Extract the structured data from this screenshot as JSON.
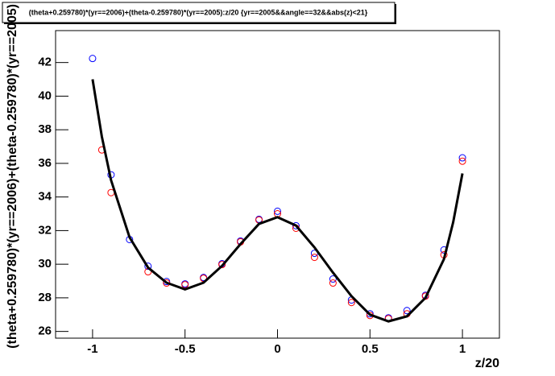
{
  "chart_data": {
    "type": "scatter",
    "title": "(theta+0.259780)*(yr==2006)+(theta-0.259780)*(yr==2005):z/20 {yr==2005&&angle==32&&abs(z)<21}",
    "x_label": "z/20",
    "y_label": "(theta+0.259780)*(yr==2006)+(theta-0.259780)*(yr==2005)",
    "xlim": [
      -1.2,
      1.2
    ],
    "ylim": [
      25.6,
      43.9
    ],
    "xticks": [
      -1,
      -0.5,
      0,
      0.5,
      1
    ],
    "yticks": [
      26,
      28,
      30,
      32,
      34,
      36,
      38,
      40,
      42
    ],
    "series": [
      {
        "color": "#0000ff",
        "x": [
          -1,
          -0.9,
          -0.8,
          -0.7,
          -0.6,
          -0.5,
          -0.4,
          -0.3,
          -0.2,
          -0.1,
          0,
          0.1,
          0.2,
          0.3,
          0.4,
          0.5,
          0.6,
          0.7,
          0.8,
          0.9,
          1
        ],
        "values": [
          42.24,
          35.32,
          31.47,
          29.88,
          28.97,
          28.83,
          29.21,
          30.03,
          31.38,
          32.67,
          33.15,
          32.29,
          30.65,
          29.12,
          27.87,
          27.05,
          26.81,
          27.24,
          28.15,
          30.85,
          36.33
        ]
      },
      {
        "color": "#ff0000",
        "x": [
          -0.95,
          -0.9,
          -0.7,
          -0.6,
          -0.5,
          -0.4,
          -0.3,
          -0.2,
          -0.1,
          0,
          0.1,
          0.2,
          0.3,
          0.4,
          0.5,
          0.6,
          0.7,
          0.8,
          0.9,
          1
        ],
        "values": [
          36.8,
          34.26,
          29.55,
          28.88,
          28.78,
          29.16,
          29.98,
          31.33,
          32.63,
          33.0,
          32.14,
          30.41,
          28.88,
          27.72,
          26.95,
          26.76,
          27.05,
          28.1,
          30.56,
          36.13
        ]
      },
      {
        "color": "#000000",
        "line": true,
        "x": [
          -1,
          -0.95,
          -0.9,
          -0.8,
          -0.7,
          -0.6,
          -0.5,
          -0.4,
          -0.3,
          -0.2,
          -0.1,
          0,
          0.1,
          0.2,
          0.3,
          0.4,
          0.5,
          0.6,
          0.7,
          0.8,
          0.9,
          0.95,
          1
        ],
        "values": [
          41.0,
          37.6,
          35.0,
          31.6,
          29.8,
          28.9,
          28.5,
          28.9,
          29.9,
          31.2,
          32.4,
          32.8,
          32.3,
          31.0,
          29.5,
          28.1,
          27.0,
          26.6,
          26.9,
          28.0,
          30.3,
          32.5,
          35.4
        ]
      }
    ]
  }
}
